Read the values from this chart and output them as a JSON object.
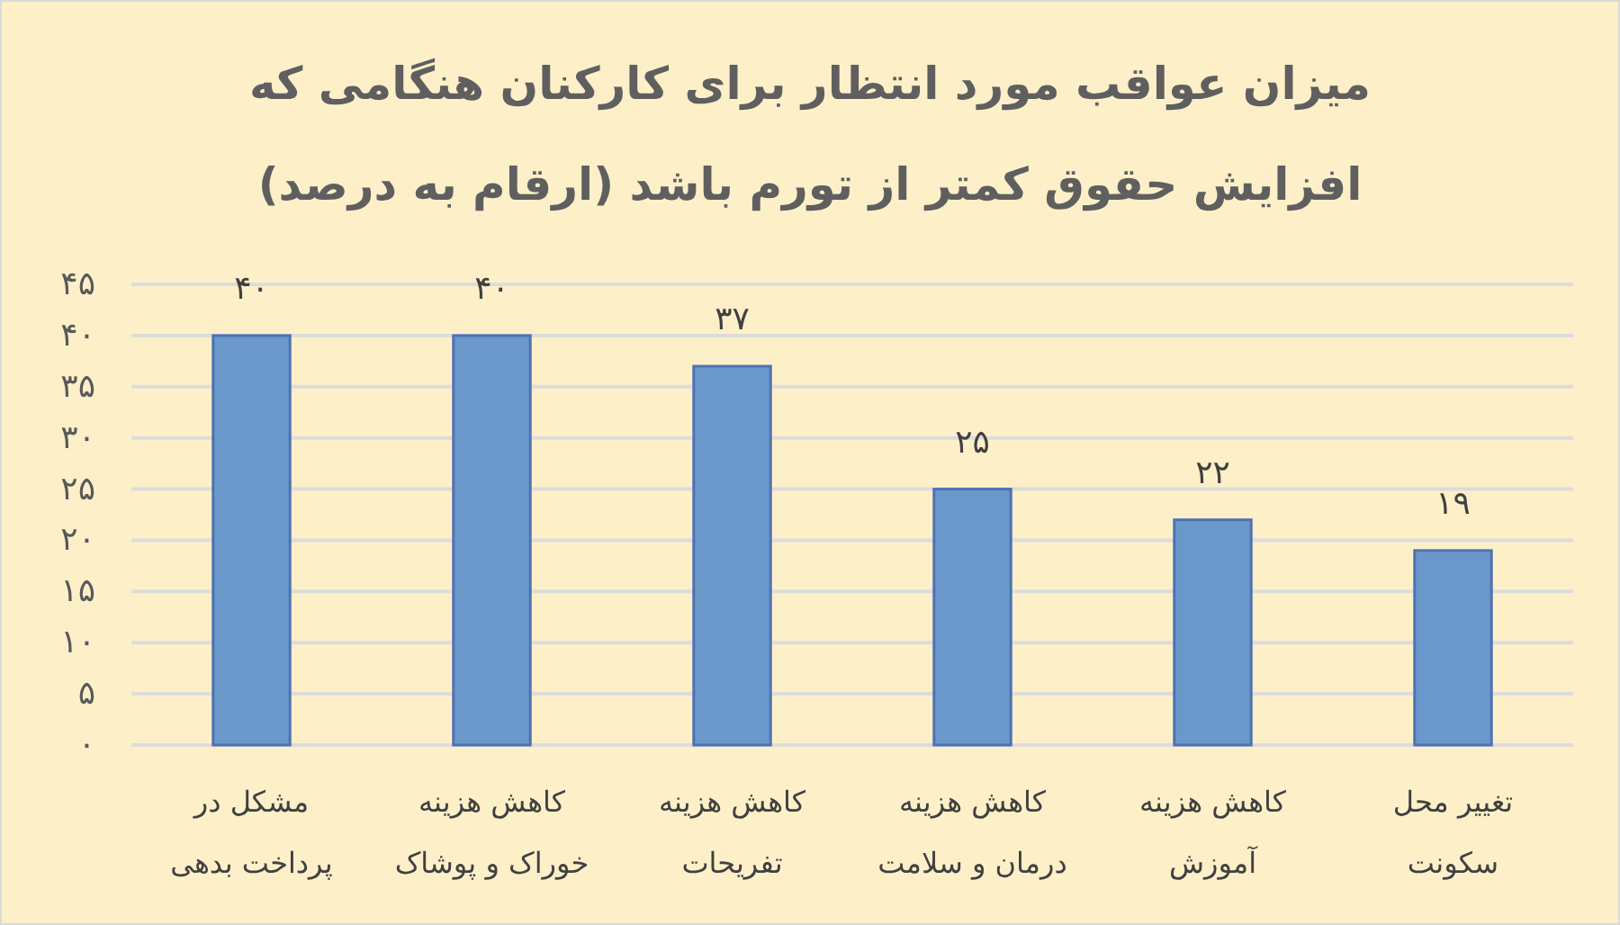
{
  "chart_data": {
    "type": "bar",
    "title": "میزان عواقب مورد انتظار برای کارکنان هنگامی که\nافزایش حقوق کمتر از تورم باشد (ارقام به درصد)",
    "categories": [
      "مشکل در\nپرداخت بدهی",
      "کاهش هزینه\nخوراک و پوشاک",
      "کاهش هزینه\nتفریحات",
      "کاهش هزینه\nدرمان و سلامت",
      "کاهش هزینه\nآموزش",
      "تغییر محل\nسکونت"
    ],
    "values": [
      40,
      40,
      37,
      25,
      22,
      19
    ],
    "value_labels": [
      "۴۰",
      "۴۰",
      "۳۷",
      "۲۵",
      "۲۲",
      "۱۹"
    ],
    "color": "#6a98ca",
    "ylim": [
      0,
      45
    ],
    "yticks": [
      {
        "value": 0,
        "label": "۰"
      },
      {
        "value": 5,
        "label": "۵"
      },
      {
        "value": 10,
        "label": "۱۰"
      },
      {
        "value": 15,
        "label": "۱۵"
      },
      {
        "value": 20,
        "label": "۲۰"
      },
      {
        "value": 25,
        "label": "۲۵"
      },
      {
        "value": 30,
        "label": "۳۰"
      },
      {
        "value": 35,
        "label": "۳۵"
      },
      {
        "value": 40,
        "label": "۴۰"
      },
      {
        "value": 45,
        "label": "۴۵"
      }
    ],
    "grid": "y"
  }
}
